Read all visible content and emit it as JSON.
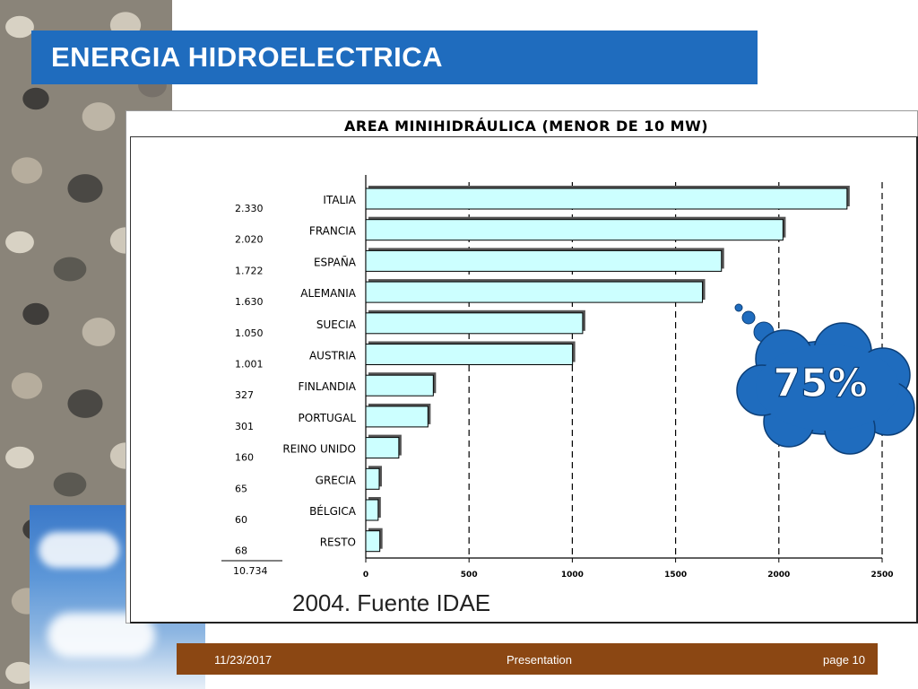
{
  "slide": {
    "title": "ENERGIA HIDROELECTRICA",
    "source": "2004. Fuente IDAE",
    "bubble_text": "75%",
    "footer": {
      "date": "11/23/2017",
      "center": "Presentation",
      "page": "page 10"
    }
  },
  "colors": {
    "title_bar": "#1f6cbe",
    "bar_fill": "#ccffff",
    "bubble": "#1f6cbe",
    "footer": "#8b4713"
  },
  "chart_data": {
    "type": "bar",
    "orientation": "horizontal",
    "title": "AREA MINIHIDRÁULICA (MENOR DE 10 MW)",
    "categories": [
      "ITALIA",
      "FRANCIA",
      "ESPAÑA",
      "ALEMANIA",
      "SUECIA",
      "AUSTRIA",
      "FINLANDIA",
      "PORTUGAL",
      "REINO UNIDO",
      "GRECIA",
      "BÉLGICA",
      "RESTO"
    ],
    "values": [
      2330,
      2020,
      1722,
      1630,
      1050,
      1001,
      327,
      301,
      160,
      65,
      60,
      68
    ],
    "value_labels": [
      "2.330",
      "2.020",
      "1.722",
      "1.630",
      "1.050",
      "1.001",
      "327",
      "301",
      "160",
      "65",
      "60",
      "68"
    ],
    "total_label": "10.734",
    "xlim": [
      0,
      2500
    ],
    "xticks": [
      0,
      500,
      1000,
      1500,
      2000,
      2500
    ],
    "xtick_labels": [
      "0",
      "500",
      "1000",
      "1500",
      "2000",
      "2500"
    ],
    "grid": "vertical-dashed",
    "xlabel": "",
    "ylabel": ""
  }
}
